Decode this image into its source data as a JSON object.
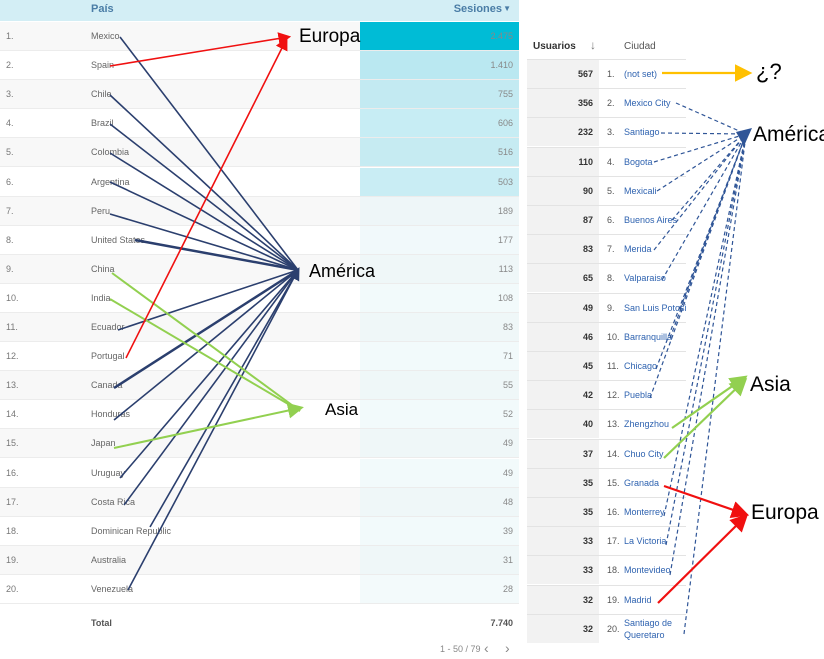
{
  "left_table": {
    "col_country": "País",
    "col_sessions": "Sesiones",
    "rows": [
      {
        "idx": "1.",
        "name": "Mexico",
        "val": "2.475",
        "fill": 1.0
      },
      {
        "idx": "2.",
        "name": "Spain",
        "val": "1.410",
        "fill": 0.8
      },
      {
        "idx": "3.",
        "name": "Chile",
        "val": "755",
        "fill": 0.5
      },
      {
        "idx": "4.",
        "name": "Brazil",
        "val": "606",
        "fill": 0.45
      },
      {
        "idx": "5.",
        "name": "Colombia",
        "val": "516",
        "fill": 0.42
      },
      {
        "idx": "6.",
        "name": "Argentina",
        "val": "503",
        "fill": 0.41
      },
      {
        "idx": "7.",
        "name": "Peru",
        "val": "189",
        "fill": 0.15
      },
      {
        "idx": "8.",
        "name": "United States",
        "val": "177",
        "fill": 0.14
      },
      {
        "idx": "9.",
        "name": "China",
        "val": "113",
        "fill": 0.1
      },
      {
        "idx": "10.",
        "name": "India",
        "val": "108",
        "fill": 0.09
      },
      {
        "idx": "11.",
        "name": "Ecuador",
        "val": "83",
        "fill": 0.07
      },
      {
        "idx": "12.",
        "name": "Portugal",
        "val": "71",
        "fill": 0.06
      },
      {
        "idx": "13.",
        "name": "Canada",
        "val": "55",
        "fill": 0.05
      },
      {
        "idx": "14.",
        "name": "Honduras",
        "val": "52",
        "fill": 0.05
      },
      {
        "idx": "15.",
        "name": "Japan",
        "val": "49",
        "fill": 0.04
      },
      {
        "idx": "16.",
        "name": "Uruguay",
        "val": "49",
        "fill": 0.04
      },
      {
        "idx": "17.",
        "name": "Costa Rica",
        "val": "48",
        "fill": 0.04
      },
      {
        "idx": "18.",
        "name": "Dominican Republic",
        "val": "39",
        "fill": 0.03
      },
      {
        "idx": "19.",
        "name": "Australia",
        "val": "31",
        "fill": 0.03
      },
      {
        "idx": "20.",
        "name": "Venezuela",
        "val": "28",
        "fill": 0.02
      }
    ],
    "total_label": "Total",
    "total_value": "7.740",
    "pagination": "1 - 50 / 79",
    "prev_symbol": "‹",
    "next_symbol": "›"
  },
  "right_table": {
    "col_users": "Usuarios",
    "sort_icon": "↓",
    "col_city": "Ciudad",
    "rows": [
      {
        "users": "567",
        "idx": "1.",
        "city": "(not set)"
      },
      {
        "users": "356",
        "idx": "2.",
        "city": "Mexico City"
      },
      {
        "users": "232",
        "idx": "3.",
        "city": "Santiago"
      },
      {
        "users": "110",
        "idx": "4.",
        "city": "Bogota"
      },
      {
        "users": "90",
        "idx": "5.",
        "city": "Mexicali"
      },
      {
        "users": "87",
        "idx": "6.",
        "city": "Buenos Aires"
      },
      {
        "users": "83",
        "idx": "7.",
        "city": "Merida"
      },
      {
        "users": "65",
        "idx": "8.",
        "city": "Valparaiso"
      },
      {
        "users": "49",
        "idx": "9.",
        "city": "San Luis Potosi"
      },
      {
        "users": "46",
        "idx": "10.",
        "city": "Barranquilla"
      },
      {
        "users": "45",
        "idx": "11.",
        "city": "Chicago"
      },
      {
        "users": "42",
        "idx": "12.",
        "city": "Puebla"
      },
      {
        "users": "40",
        "idx": "13.",
        "city": "Zhengzhou"
      },
      {
        "users": "37",
        "idx": "14.",
        "city": "Chuo City"
      },
      {
        "users": "35",
        "idx": "15.",
        "city": "Granada"
      },
      {
        "users": "35",
        "idx": "16.",
        "city": "Monterrey"
      },
      {
        "users": "33",
        "idx": "17.",
        "city": "La Victoria"
      },
      {
        "users": "33",
        "idx": "18.",
        "city": "Montevideo"
      },
      {
        "users": "32",
        "idx": "19.",
        "city": "Madrid"
      },
      {
        "users": "32",
        "idx": "20.",
        "city": "Santiago de",
        "city2": "Queretaro"
      }
    ]
  },
  "annotations": {
    "europa_left": "Europa",
    "america_left": "América",
    "asia_left": "Asia",
    "unknown_right": "¿?",
    "america_right": "América",
    "asia_right": "Asia",
    "europa_right": "Europa"
  },
  "colors": {
    "america": "#2b3f6e",
    "europe": "#f01010",
    "asia": "#92d050",
    "unknown": "#ffc000",
    "bar_dark": "#00bcd6",
    "bar_light": "#b2e6f0"
  }
}
